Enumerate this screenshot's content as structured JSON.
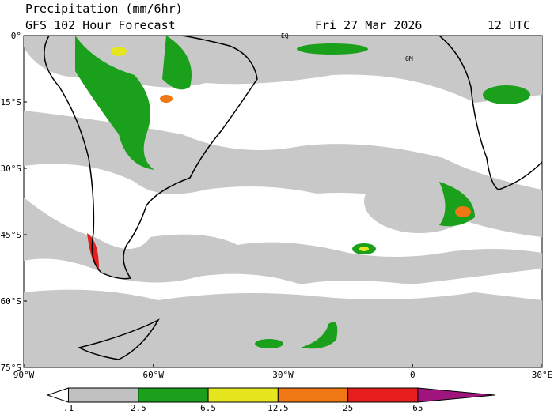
{
  "header": {
    "title": "Precipitation (mm/6hr)",
    "subtitle": "GFS 102 Hour Forecast",
    "date": "Fri 27 Mar 2026",
    "time": "12 UTC"
  },
  "map": {
    "lat_labels": [
      "0°",
      "15°S",
      "30°S",
      "45°S",
      "60°S",
      "75°S"
    ],
    "lon_labels": [
      "90°W",
      "60°W",
      "30°W",
      "0",
      "30°E"
    ],
    "markers": [
      "EQ",
      "GM"
    ]
  },
  "colorbar": {
    "labels": [
      ".1",
      "2.5",
      "6.5",
      "12.5",
      "25",
      "65"
    ],
    "colors": [
      "#ffffff",
      "#c0c0c0",
      "#1aa01a",
      "#e6e61e",
      "#f07814",
      "#e61e1e",
      "#a0147d"
    ]
  }
}
